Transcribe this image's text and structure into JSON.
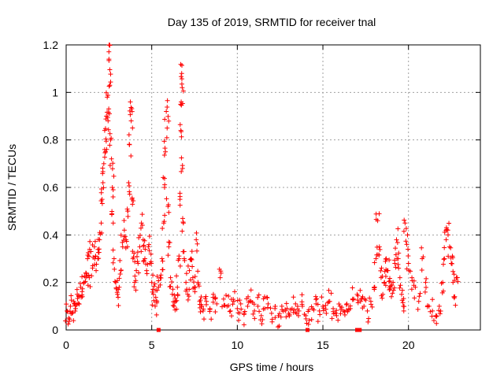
{
  "chart_data": {
    "type": "scatter",
    "title": "Day 135 of 2019, SRMTID for receiver tnal",
    "xlabel": "GPS time / hours",
    "ylabel": "SRMTID / TECUs",
    "xlim": [
      0,
      24.2
    ],
    "ylim": [
      0,
      1.2
    ],
    "xticks": [
      0,
      5,
      10,
      15,
      20
    ],
    "yticks": [
      0,
      0.2,
      0.4,
      0.6,
      0.8,
      1,
      1.2
    ],
    "ytick_labels": [
      "0",
      "0.2",
      "0.4",
      "0.6",
      "0.8",
      "1",
      "1.2"
    ],
    "grid": true,
    "marker": "+",
    "color": "#ff0000",
    "series": [
      {
        "name": "SRMTID",
        "points": [
          [
            0.05,
            0.08
          ],
          [
            0.15,
            0.05
          ],
          [
            0.25,
            0.1
          ],
          [
            0.35,
            0.07
          ],
          [
            0.45,
            0.12
          ],
          [
            0.55,
            0.09
          ],
          [
            0.65,
            0.15
          ],
          [
            0.75,
            0.11
          ],
          [
            0.85,
            0.18
          ],
          [
            0.95,
            0.14
          ],
          [
            1.05,
            0.2
          ],
          [
            1.15,
            0.24
          ],
          [
            1.25,
            0.3
          ],
          [
            1.35,
            0.22
          ],
          [
            1.45,
            0.33
          ],
          [
            1.55,
            0.27
          ],
          [
            1.65,
            0.35
          ],
          [
            1.75,
            0.25
          ],
          [
            1.85,
            0.3
          ],
          [
            1.95,
            0.38
          ],
          [
            2.05,
            0.45
          ],
          [
            2.1,
            0.55
          ],
          [
            2.15,
            0.62
          ],
          [
            2.2,
            0.7
          ],
          [
            2.25,
            0.84
          ],
          [
            2.3,
            0.75
          ],
          [
            2.35,
            0.9
          ],
          [
            2.4,
            0.98
          ],
          [
            2.45,
            0.88
          ],
          [
            2.5,
            1.14
          ],
          [
            2.52,
            1.2
          ],
          [
            2.55,
            1.03
          ],
          [
            2.6,
            0.8
          ],
          [
            2.65,
            0.72
          ],
          [
            2.7,
            0.6
          ],
          [
            2.75,
            0.45
          ],
          [
            2.8,
            0.3
          ],
          [
            2.9,
            0.2
          ],
          [
            3.0,
            0.15
          ],
          [
            3.1,
            0.18
          ],
          [
            3.2,
            0.25
          ],
          [
            3.3,
            0.35
          ],
          [
            3.4,
            0.42
          ],
          [
            3.5,
            0.38
          ],
          [
            3.6,
            0.5
          ],
          [
            3.65,
            0.62
          ],
          [
            3.7,
            0.78
          ],
          [
            3.75,
            0.96
          ],
          [
            3.8,
            0.88
          ],
          [
            3.85,
            0.55
          ],
          [
            3.9,
            0.3
          ],
          [
            4.0,
            0.2
          ],
          [
            4.1,
            0.25
          ],
          [
            4.2,
            0.28
          ],
          [
            4.3,
            0.35
          ],
          [
            4.4,
            0.45
          ],
          [
            4.5,
            0.38
          ],
          [
            4.6,
            0.3
          ],
          [
            4.7,
            0.25
          ],
          [
            4.8,
            0.35
          ],
          [
            4.9,
            0.28
          ],
          [
            5.0,
            0.2
          ],
          [
            5.1,
            0.15
          ],
          [
            5.2,
            0.1
          ],
          [
            5.3,
            0.12
          ],
          [
            5.4,
            0.18
          ],
          [
            5.5,
            0.22
          ],
          [
            5.6,
            0.3
          ],
          [
            5.7,
            0.45
          ],
          [
            5.75,
            0.6
          ],
          [
            5.8,
            0.75
          ],
          [
            5.85,
            0.92
          ],
          [
            5.9,
            0.85
          ],
          [
            5.95,
            0.52
          ],
          [
            6.0,
            0.35
          ],
          [
            6.1,
            0.22
          ],
          [
            6.2,
            0.15
          ],
          [
            6.3,
            0.1
          ],
          [
            6.4,
            0.12
          ],
          [
            6.5,
            0.18
          ],
          [
            6.6,
            0.3
          ],
          [
            6.65,
            0.55
          ],
          [
            6.7,
            0.84
          ],
          [
            6.72,
            0.96
          ],
          [
            6.75,
            1.08
          ],
          [
            6.78,
            1.02
          ],
          [
            6.8,
            0.68
          ],
          [
            6.85,
            0.45
          ],
          [
            6.9,
            0.3
          ],
          [
            7.0,
            0.2
          ],
          [
            7.1,
            0.15
          ],
          [
            7.2,
            0.25
          ],
          [
            7.3,
            0.3
          ],
          [
            7.4,
            0.22
          ],
          [
            7.5,
            0.18
          ],
          [
            7.6,
            0.38
          ],
          [
            7.7,
            0.2
          ],
          [
            7.8,
            0.12
          ],
          [
            7.9,
            0.1
          ],
          [
            8.0,
            0.08
          ],
          [
            8.2,
            0.12
          ],
          [
            8.4,
            0.09
          ],
          [
            8.6,
            0.15
          ],
          [
            8.8,
            0.11
          ],
          [
            9.0,
            0.22
          ],
          [
            9.2,
            0.13
          ],
          [
            9.4,
            0.1
          ],
          [
            9.6,
            0.08
          ],
          [
            9.8,
            0.12
          ],
          [
            10.0,
            0.09
          ],
          [
            10.2,
            0.11
          ],
          [
            10.4,
            0.07
          ],
          [
            10.6,
            0.1
          ],
          [
            10.8,
            0.12
          ],
          [
            11.0,
            0.08
          ],
          [
            11.2,
            0.1
          ],
          [
            11.4,
            0.06
          ],
          [
            11.6,
            0.09
          ],
          [
            11.8,
            0.11
          ],
          [
            12.0,
            0.07
          ],
          [
            12.2,
            0.09
          ],
          [
            12.4,
            0.06
          ],
          [
            12.6,
            0.1
          ],
          [
            12.8,
            0.08
          ],
          [
            13.0,
            0.07
          ],
          [
            13.2,
            0.09
          ],
          [
            13.4,
            0.11
          ],
          [
            13.6,
            0.08
          ],
          [
            13.8,
            0.1
          ],
          [
            14.0,
            0.06
          ],
          [
            14.2,
            0.04
          ],
          [
            14.4,
            0.09
          ],
          [
            14.6,
            0.11
          ],
          [
            14.8,
            0.08
          ],
          [
            15.0,
            0.1
          ],
          [
            15.2,
            0.07
          ],
          [
            15.4,
            0.12
          ],
          [
            15.6,
            0.09
          ],
          [
            15.8,
            0.06
          ],
          [
            16.0,
            0.1
          ],
          [
            16.2,
            0.08
          ],
          [
            16.4,
            0.11
          ],
          [
            16.6,
            0.09
          ],
          [
            16.8,
            0.13
          ],
          [
            17.0,
            0.15
          ],
          [
            17.2,
            0.12
          ],
          [
            17.4,
            0.1
          ],
          [
            17.6,
            0.08
          ],
          [
            17.8,
            0.12
          ],
          [
            18.0,
            0.18
          ],
          [
            18.1,
            0.3
          ],
          [
            18.2,
            0.46
          ],
          [
            18.3,
            0.35
          ],
          [
            18.4,
            0.22
          ],
          [
            18.5,
            0.15
          ],
          [
            18.6,
            0.2
          ],
          [
            18.7,
            0.3
          ],
          [
            18.8,
            0.25
          ],
          [
            18.9,
            0.18
          ],
          [
            19.0,
            0.14
          ],
          [
            19.1,
            0.2
          ],
          [
            19.2,
            0.28
          ],
          [
            19.3,
            0.38
          ],
          [
            19.4,
            0.3
          ],
          [
            19.5,
            0.22
          ],
          [
            19.6,
            0.15
          ],
          [
            19.7,
            0.1
          ],
          [
            19.8,
            0.45
          ],
          [
            19.9,
            0.36
          ],
          [
            20.0,
            0.28
          ],
          [
            20.2,
            0.22
          ],
          [
            20.4,
            0.18
          ],
          [
            20.6,
            0.12
          ],
          [
            20.8,
            0.3
          ],
          [
            21.0,
            0.2
          ],
          [
            21.2,
            0.1
          ],
          [
            21.4,
            0.08
          ],
          [
            21.6,
            0.06
          ],
          [
            21.8,
            0.1
          ],
          [
            22.0,
            0.2
          ],
          [
            22.1,
            0.3
          ],
          [
            22.2,
            0.38
          ],
          [
            22.3,
            0.42
          ],
          [
            22.4,
            0.35
          ],
          [
            22.5,
            0.28
          ],
          [
            22.6,
            0.2
          ],
          [
            22.7,
            0.14
          ],
          [
            22.8,
            0.22
          ]
        ]
      }
    ],
    "gap_markers_x": [
      5.4,
      14.1,
      17.0,
      17.15
    ]
  }
}
